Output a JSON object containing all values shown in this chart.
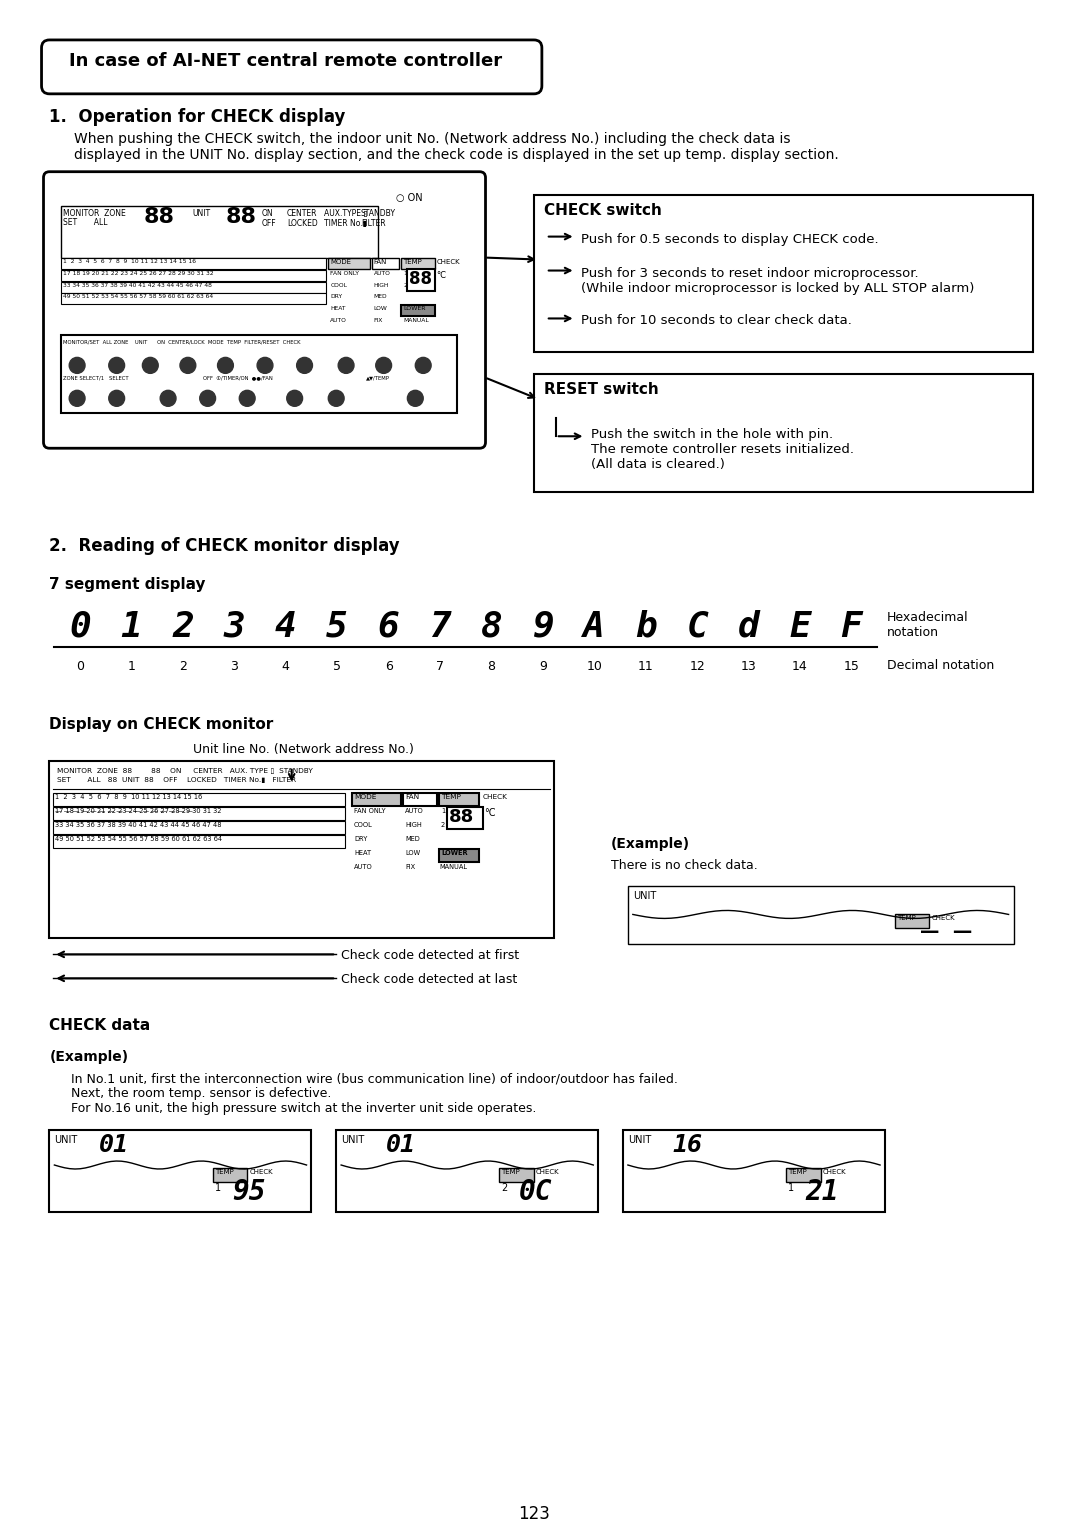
{
  "title": "In case of AI-NET central remote controller",
  "section1_title": "1.  Operation for CHECK display",
  "section1_body": "When pushing the CHECK switch, the indoor unit No. (Network address No.) including the check data is\ndisplayed in the UNIT No. display section, and the check code is displayed in the set up temp. display section.",
  "check_switch_title": "CHECK switch",
  "check_switch_lines": [
    "Push for 0.5 seconds to display CHECK code.",
    "Push for 3 seconds to reset indoor microprocessor.\n(While indoor microprocessor is locked by ALL STOP alarm)",
    "Push for 10 seconds to clear check data."
  ],
  "reset_switch_title": "RESET switch",
  "reset_switch_lines": [
    "Push the switch in the hole with pin.\nThe remote controller resets initialized.\n(All data is cleared.)"
  ],
  "section2_title": "2.  Reading of CHECK monitor display",
  "segment_title": "7 segment display",
  "segment_chars": [
    "0",
    "1",
    "2",
    "3",
    "4",
    "5",
    "6",
    "7",
    "8",
    "9",
    "A",
    "b",
    "C",
    "d",
    "E",
    "F"
  ],
  "decimal_labels": [
    "0",
    "1",
    "2",
    "3",
    "4",
    "5",
    "6",
    "7",
    "8",
    "9",
    "10",
    "11",
    "12",
    "13",
    "14",
    "15"
  ],
  "hex_notation": "Hexadecimal\nnotation",
  "dec_notation": "Decimal notation",
  "check_monitor_title": "Display on CHECK monitor",
  "unit_line_label": "Unit line No. (Network address No.)",
  "check_data_title": "CHECK data",
  "example_title": "(Example)",
  "example_body": "In No.1 unit, first the interconnection wire (bus communication line) of indoor/outdoor has failed.\nNext, the room temp. sensor is defective.\nFor No.16 unit, the high pressure switch at the inverter unit side operates.",
  "example2_title": "(Example)",
  "example2_body": "There is no check data.",
  "check_detected_first": "Check code detected at first",
  "check_detected_last": "Check code detected at last",
  "page_number": "123",
  "bg_color": "#ffffff",
  "text_color": "#000000"
}
